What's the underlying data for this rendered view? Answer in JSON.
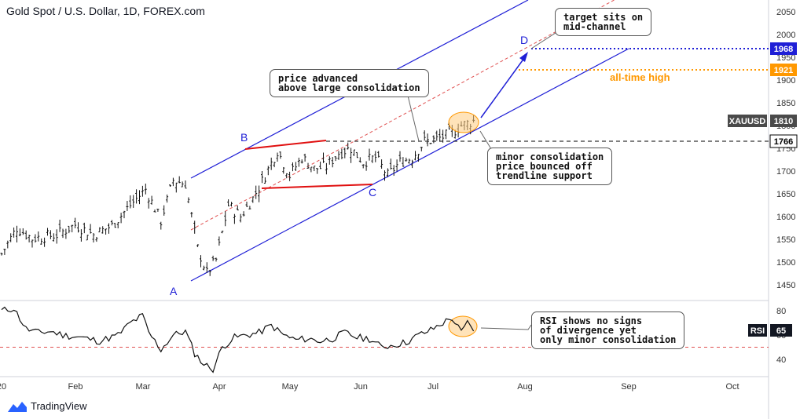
{
  "header": {
    "title": "Gold Spot / U.S. Dollar, 1D, FOREX.com"
  },
  "branding": {
    "logo_text": "TradingView",
    "logo_icon": "tradingview-logo-icon"
  },
  "chart_data": [
    {
      "type": "ohlc",
      "title": "Gold Spot / U.S. Dollar, 1D, FOREX.com",
      "symbol": "XAUUSD",
      "last_price": 1810,
      "x_ticks": [
        "20",
        "Feb",
        "Mar",
        "Apr",
        "May",
        "Jun",
        "Jul",
        "Aug",
        "Sep",
        "Oct"
      ],
      "y_ticks": [
        1450,
        1500,
        1550,
        1600,
        1650,
        1700,
        1750,
        1800,
        1850,
        1900,
        1950,
        2000,
        2050
      ],
      "ylim": [
        1410,
        2070
      ],
      "price_key_points": [
        {
          "i": 0,
          "close": 1518
        },
        {
          "i": 5,
          "close": 1575
        },
        {
          "i": 10,
          "close": 1552
        },
        {
          "i": 18,
          "close": 1560
        },
        {
          "i": 24,
          "close": 1582
        },
        {
          "i": 30,
          "close": 1560
        },
        {
          "i": 36,
          "close": 1580
        },
        {
          "i": 42,
          "close": 1625
        },
        {
          "i": 47,
          "close": 1660
        },
        {
          "i": 52,
          "close": 1590
        },
        {
          "i": 56,
          "close": 1680
        },
        {
          "i": 60,
          "close": 1672
        },
        {
          "i": 64,
          "close": 1530
        },
        {
          "i": 67,
          "close": 1475
        },
        {
          "i": 70,
          "close": 1505
        },
        {
          "i": 74,
          "close": 1625
        },
        {
          "i": 78,
          "close": 1600
        },
        {
          "i": 82,
          "close": 1640
        },
        {
          "i": 86,
          "close": 1690
        },
        {
          "i": 90,
          "close": 1745
        },
        {
          "i": 94,
          "close": 1690
        },
        {
          "i": 98,
          "close": 1730
        },
        {
          "i": 102,
          "close": 1705
        },
        {
          "i": 106,
          "close": 1710
        },
        {
          "i": 110,
          "close": 1740
        },
        {
          "i": 114,
          "close": 1750
        },
        {
          "i": 118,
          "close": 1720
        },
        {
          "i": 122,
          "close": 1730
        },
        {
          "i": 126,
          "close": 1690
        },
        {
          "i": 130,
          "close": 1720
        },
        {
          "i": 134,
          "close": 1730
        },
        {
          "i": 138,
          "close": 1765
        },
        {
          "i": 142,
          "close": 1770
        },
        {
          "i": 146,
          "close": 1780
        },
        {
          "i": 150,
          "close": 1800
        },
        {
          "i": 154,
          "close": 1810
        }
      ],
      "horizontal_levels": [
        {
          "value": 1968,
          "label": "1968",
          "color": "#1f1fd6",
          "style": "dotted"
        },
        {
          "value": 1921,
          "label": "1921",
          "color": "#ff9800",
          "style": "dotted",
          "note": "all-time high"
        },
        {
          "value": 1766,
          "label": "1766",
          "color": "#000000",
          "style": "dashed"
        }
      ],
      "price_tag": {
        "label": "XAUUSD",
        "value": "1810"
      },
      "wave_labels": [
        "A",
        "B",
        "C",
        "D"
      ]
    },
    {
      "type": "line",
      "name": "RSI",
      "current": 65,
      "y_ticks": [
        40,
        60,
        80
      ],
      "ylim": [
        28,
        90
      ],
      "reference_level": 50,
      "key_points": [
        {
          "i": 0,
          "v": 80
        },
        {
          "i": 4,
          "v": 82
        },
        {
          "i": 8,
          "v": 65
        },
        {
          "i": 12,
          "v": 62
        },
        {
          "i": 16,
          "v": 63
        },
        {
          "i": 20,
          "v": 60
        },
        {
          "i": 26,
          "v": 58
        },
        {
          "i": 32,
          "v": 55
        },
        {
          "i": 38,
          "v": 60
        },
        {
          "i": 42,
          "v": 70
        },
        {
          "i": 46,
          "v": 76
        },
        {
          "i": 48,
          "v": 62
        },
        {
          "i": 52,
          "v": 48
        },
        {
          "i": 56,
          "v": 60
        },
        {
          "i": 60,
          "v": 63
        },
        {
          "i": 63,
          "v": 45
        },
        {
          "i": 66,
          "v": 36
        },
        {
          "i": 69,
          "v": 32
        },
        {
          "i": 72,
          "v": 50
        },
        {
          "i": 76,
          "v": 58
        },
        {
          "i": 80,
          "v": 60
        },
        {
          "i": 84,
          "v": 62
        },
        {
          "i": 88,
          "v": 68
        },
        {
          "i": 92,
          "v": 60
        },
        {
          "i": 96,
          "v": 56
        },
        {
          "i": 100,
          "v": 57
        },
        {
          "i": 104,
          "v": 55
        },
        {
          "i": 108,
          "v": 57
        },
        {
          "i": 112,
          "v": 62
        },
        {
          "i": 116,
          "v": 58
        },
        {
          "i": 120,
          "v": 57
        },
        {
          "i": 124,
          "v": 50
        },
        {
          "i": 128,
          "v": 52
        },
        {
          "i": 132,
          "v": 54
        },
        {
          "i": 136,
          "v": 60
        },
        {
          "i": 140,
          "v": 64
        },
        {
          "i": 144,
          "v": 70
        },
        {
          "i": 147,
          "v": 74
        },
        {
          "i": 150,
          "v": 62
        },
        {
          "i": 152,
          "v": 70
        },
        {
          "i": 154,
          "v": 65
        }
      ]
    }
  ],
  "annotations": {
    "note_advanced": "price advanced\nabove large consolidation",
    "note_target": "target sits on\nmid-channel",
    "note_minor": "minor consolidation\nprice bounced off\ntrendline support",
    "note_rsi": "RSI shows no signs\nof divergence yet\nonly minor consolidation",
    "ath_label": "all-time high"
  },
  "colors": {
    "channel": "#1f1fd6",
    "consolidation": "#e01010",
    "midline": "#e05050",
    "highlight": "#ff9800",
    "bars": "#111111"
  }
}
